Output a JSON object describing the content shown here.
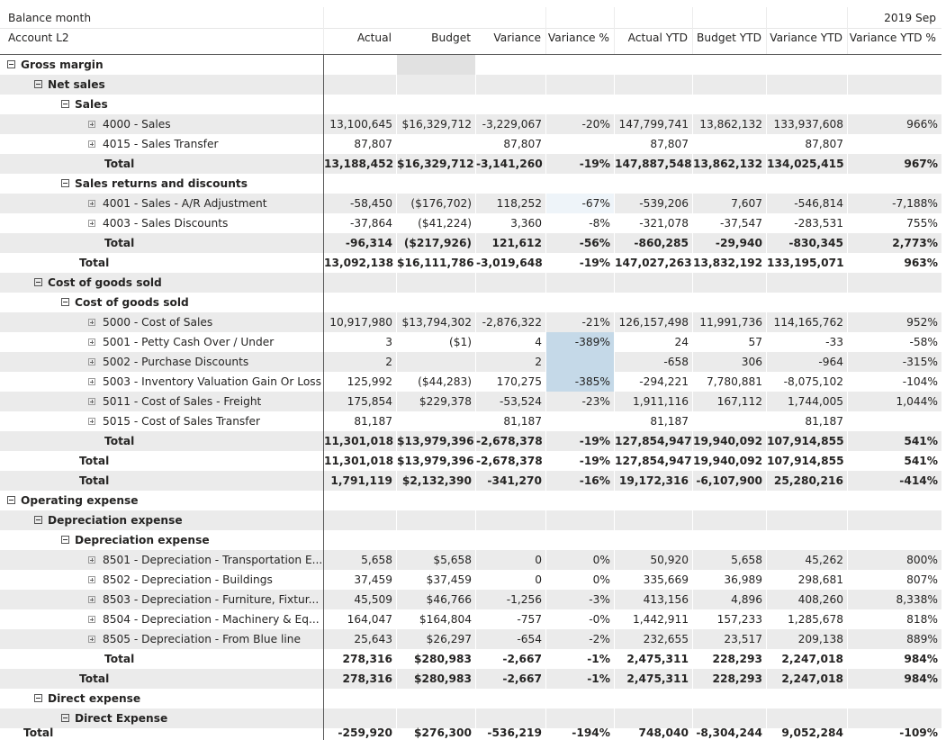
{
  "header": {
    "row_field": "Balance month",
    "row_label": "Account L2",
    "period": "2019 Sep",
    "columns": [
      "Actual",
      "Budget",
      "Variance",
      "Variance %",
      "Actual YTD",
      "Budget YTD",
      "Variance YTD",
      "Variance YTD %"
    ]
  },
  "rows": [
    {
      "label": "Gross margin",
      "level": 0,
      "toggle": "collapse",
      "bold": true,
      "grey": false,
      "values": [
        "",
        "",
        "",
        "",
        "",
        "",
        "",
        ""
      ]
    },
    {
      "label": "Net sales",
      "level": 1,
      "toggle": "collapse",
      "bold": true,
      "grey": true,
      "values": [
        "",
        "",
        "",
        "",
        "",
        "",
        "",
        ""
      ]
    },
    {
      "label": "Sales",
      "level": 2,
      "toggle": "collapse",
      "bold": true,
      "grey": false,
      "values": [
        "",
        "",
        "",
        "",
        "",
        "",
        "",
        ""
      ]
    },
    {
      "label": "4000 - Sales",
      "level": 3,
      "toggle": "expand",
      "bold": false,
      "grey": true,
      "values": [
        "13,100,645",
        "$16,329,712",
        "-3,229,067",
        "-20%",
        "147,799,741",
        "13,862,132",
        "133,937,608",
        "966%"
      ]
    },
    {
      "label": "4015 - Sales Transfer",
      "level": 3,
      "toggle": "expand",
      "bold": false,
      "grey": false,
      "values": [
        "87,807",
        "",
        "87,807",
        "",
        "87,807",
        "",
        "87,807",
        ""
      ]
    },
    {
      "label": "Total",
      "level": 3,
      "toggle": "",
      "bold": true,
      "grey": true,
      "values": [
        "13,188,452",
        "$16,329,712",
        "-3,141,260",
        "-19%",
        "147,887,548",
        "13,862,132",
        "134,025,415",
        "967%"
      ]
    },
    {
      "label": "Sales returns and discounts",
      "level": 2,
      "toggle": "collapse",
      "bold": true,
      "grey": false,
      "values": [
        "",
        "",
        "",
        "",
        "",
        "",
        "",
        ""
      ]
    },
    {
      "label": "4001 - Sales - A/R Adjustment",
      "level": 3,
      "toggle": "expand",
      "bold": false,
      "grey": true,
      "values": [
        "-58,450",
        "($176,702)",
        "118,252",
        "-67%",
        "-539,206",
        "7,607",
        "-546,814",
        "-7,188%"
      ]
    },
    {
      "label": "4003 - Sales Discounts",
      "level": 3,
      "toggle": "expand",
      "bold": false,
      "grey": false,
      "values": [
        "-37,864",
        "($41,224)",
        "3,360",
        "-8%",
        "-321,078",
        "-37,547",
        "-283,531",
        "755%"
      ]
    },
    {
      "label": "Total",
      "level": 3,
      "toggle": "",
      "bold": true,
      "grey": true,
      "values": [
        "-96,314",
        "($217,926)",
        "121,612",
        "-56%",
        "-860,285",
        "-29,940",
        "-830,345",
        "2,773%"
      ]
    },
    {
      "label": "Total",
      "level": 2,
      "toggle": "",
      "bold": true,
      "grey": false,
      "values": [
        "13,092,138",
        "$16,111,786",
        "-3,019,648",
        "-19%",
        "147,027,263",
        "13,832,192",
        "133,195,071",
        "963%"
      ]
    },
    {
      "label": "Cost of goods sold",
      "level": 1,
      "toggle": "collapse",
      "bold": true,
      "grey": true,
      "values": [
        "",
        "",
        "",
        "",
        "",
        "",
        "",
        ""
      ]
    },
    {
      "label": "Cost of goods sold",
      "level": 2,
      "toggle": "collapse",
      "bold": true,
      "grey": false,
      "values": [
        "",
        "",
        "",
        "",
        "",
        "",
        "",
        ""
      ]
    },
    {
      "label": "5000 - Cost of Sales",
      "level": 3,
      "toggle": "expand",
      "bold": false,
      "grey": true,
      "values": [
        "10,917,980",
        "$13,794,302",
        "-2,876,322",
        "-21%",
        "126,157,498",
        "11,991,736",
        "114,165,762",
        "952%"
      ]
    },
    {
      "label": "5001 - Petty Cash Over / Under",
      "level": 3,
      "toggle": "expand",
      "bold": false,
      "grey": false,
      "values": [
        "3",
        "($1)",
        "4",
        "-389%",
        "24",
        "57",
        "-33",
        "-58%"
      ]
    },
    {
      "label": "5002 - Purchase Discounts",
      "level": 3,
      "toggle": "expand",
      "bold": false,
      "grey": true,
      "values": [
        "2",
        "",
        "2",
        "",
        "-658",
        "306",
        "-964",
        "-315%"
      ]
    },
    {
      "label": "5003 - Inventory Valuation Gain Or Loss",
      "level": 3,
      "toggle": "expand",
      "bold": false,
      "grey": false,
      "values": [
        "125,992",
        "($44,283)",
        "170,275",
        "-385%",
        "-294,221",
        "7,780,881",
        "-8,075,102",
        "-104%"
      ]
    },
    {
      "label": "5011 - Cost of Sales - Freight",
      "level": 3,
      "toggle": "expand",
      "bold": false,
      "grey": true,
      "values": [
        "175,854",
        "$229,378",
        "-53,524",
        "-23%",
        "1,911,116",
        "167,112",
        "1,744,005",
        "1,044%"
      ]
    },
    {
      "label": "5015 - Cost of Sales Transfer",
      "level": 3,
      "toggle": "expand",
      "bold": false,
      "grey": false,
      "values": [
        "81,187",
        "",
        "81,187",
        "",
        "81,187",
        "",
        "81,187",
        ""
      ]
    },
    {
      "label": "Total",
      "level": 3,
      "toggle": "",
      "bold": true,
      "grey": true,
      "values": [
        "11,301,018",
        "$13,979,396",
        "-2,678,378",
        "-19%",
        "127,854,947",
        "19,940,092",
        "107,914,855",
        "541%"
      ]
    },
    {
      "label": "Total",
      "level": 2,
      "toggle": "",
      "bold": true,
      "grey": false,
      "values": [
        "11,301,018",
        "$13,979,396",
        "-2,678,378",
        "-19%",
        "127,854,947",
        "19,940,092",
        "107,914,855",
        "541%"
      ]
    },
    {
      "label": "Total",
      "level": 1,
      "toggle": "",
      "bold": true,
      "grey": true,
      "values": [
        "1,791,119",
        "$2,132,390",
        "-341,270",
        "-16%",
        "19,172,316",
        "-6,107,900",
        "25,280,216",
        "-414%"
      ]
    },
    {
      "label": "Operating expense",
      "level": 0,
      "toggle": "collapse",
      "bold": true,
      "grey": false,
      "values": [
        "",
        "",
        "",
        "",
        "",
        "",
        "",
        ""
      ]
    },
    {
      "label": "Depreciation expense",
      "level": 1,
      "toggle": "collapse",
      "bold": true,
      "grey": true,
      "values": [
        "",
        "",
        "",
        "",
        "",
        "",
        "",
        ""
      ]
    },
    {
      "label": "Depreciation expense",
      "level": 2,
      "toggle": "collapse",
      "bold": true,
      "grey": false,
      "values": [
        "",
        "",
        "",
        "",
        "",
        "",
        "",
        ""
      ]
    },
    {
      "label": "8501 - Depreciation - Transportation E...",
      "level": 3,
      "toggle": "expand",
      "bold": false,
      "grey": true,
      "values": [
        "5,658",
        "$5,658",
        "0",
        "0%",
        "50,920",
        "5,658",
        "45,262",
        "800%"
      ]
    },
    {
      "label": "8502 - Depreciation - Buildings",
      "level": 3,
      "toggle": "expand",
      "bold": false,
      "grey": false,
      "values": [
        "37,459",
        "$37,459",
        "0",
        "0%",
        "335,669",
        "36,989",
        "298,681",
        "807%"
      ]
    },
    {
      "label": "8503 - Depreciation - Furniture, Fixtur...",
      "level": 3,
      "toggle": "expand",
      "bold": false,
      "grey": true,
      "values": [
        "45,509",
        "$46,766",
        "-1,256",
        "-3%",
        "413,156",
        "4,896",
        "408,260",
        "8,338%"
      ]
    },
    {
      "label": "8504 - Depreciation - Machinery & Eq...",
      "level": 3,
      "toggle": "expand",
      "bold": false,
      "grey": false,
      "values": [
        "164,047",
        "$164,804",
        "-757",
        "-0%",
        "1,442,911",
        "157,233",
        "1,285,678",
        "818%"
      ]
    },
    {
      "label": "8505 - Depreciation - From Blue line",
      "level": 3,
      "toggle": "expand",
      "bold": false,
      "grey": true,
      "values": [
        "25,643",
        "$26,297",
        "-654",
        "-2%",
        "232,655",
        "23,517",
        "209,138",
        "889%"
      ]
    },
    {
      "label": "Total",
      "level": 3,
      "toggle": "",
      "bold": true,
      "grey": false,
      "values": [
        "278,316",
        "$280,983",
        "-2,667",
        "-1%",
        "2,475,311",
        "228,293",
        "2,247,018",
        "984%"
      ]
    },
    {
      "label": "Total",
      "level": 2,
      "toggle": "",
      "bold": true,
      "grey": true,
      "values": [
        "278,316",
        "$280,983",
        "-2,667",
        "-1%",
        "2,475,311",
        "228,293",
        "2,247,018",
        "984%"
      ]
    },
    {
      "label": "Direct expense",
      "level": 1,
      "toggle": "collapse",
      "bold": true,
      "grey": false,
      "values": [
        "",
        "",
        "",
        "",
        "",
        "",
        "",
        ""
      ]
    },
    {
      "label": "Direct Expense",
      "level": 2,
      "toggle": "collapse",
      "bold": true,
      "grey": true,
      "values": [
        "",
        "",
        "",
        "",
        "",
        "",
        "",
        ""
      ]
    }
  ],
  "grand_total": {
    "label": "Total",
    "values": [
      "-259,920",
      "$276,300",
      "-536,219",
      "-194%",
      "748,040",
      "-8,304,244",
      "9,052,284",
      "-109%"
    ]
  }
}
